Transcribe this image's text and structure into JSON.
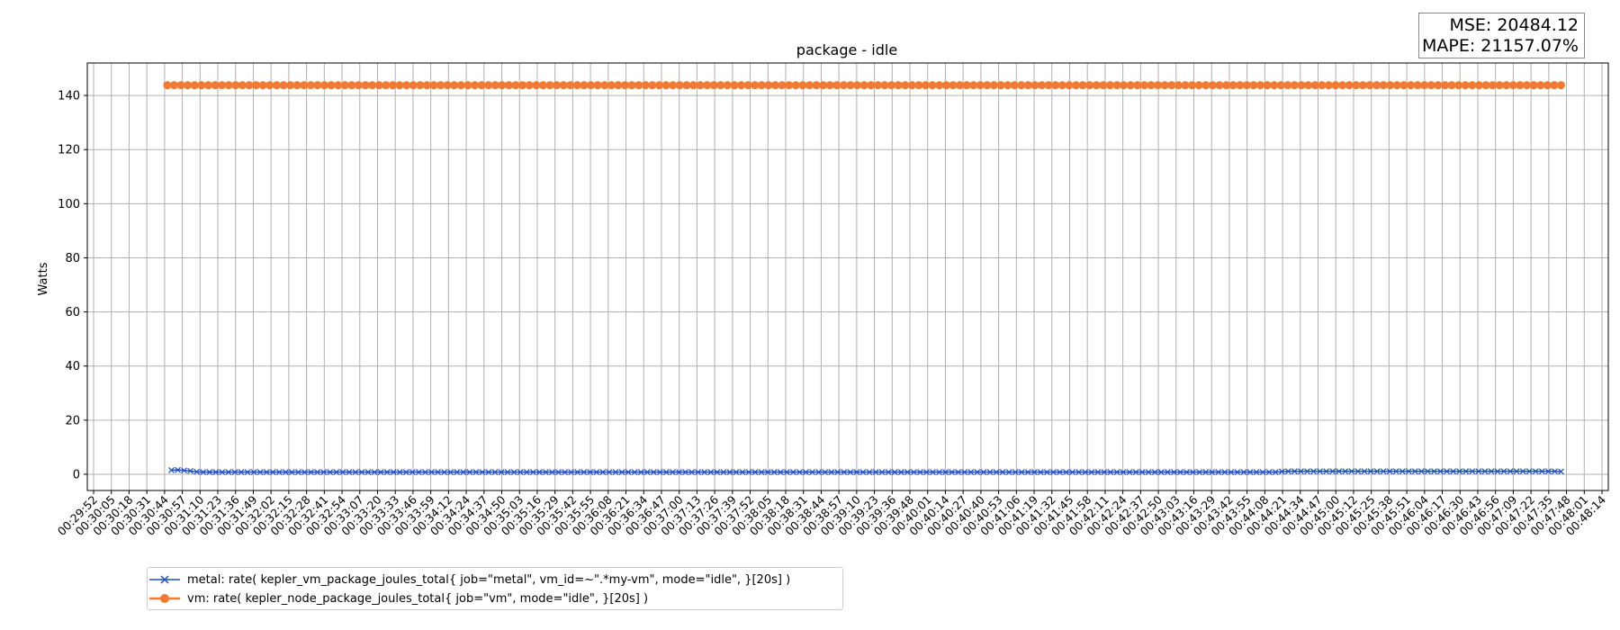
{
  "chart_data": {
    "type": "line",
    "title": "package - idle",
    "xlabel": "",
    "ylabel": "Watts",
    "ylim": [
      -6,
      152
    ],
    "yticks": [
      0,
      20,
      40,
      60,
      80,
      100,
      120,
      140
    ],
    "grid": true,
    "legend_position": "bottom-left, below plot",
    "x_tick_labels": [
      "00:29:52",
      "00:30:05",
      "00:30:18",
      "00:30:31",
      "00:30:44",
      "00:30:57",
      "00:31:10",
      "00:31:23",
      "00:31:36",
      "00:31:49",
      "00:32:02",
      "00:32:15",
      "00:32:28",
      "00:32:41",
      "00:32:54",
      "00:33:07",
      "00:33:20",
      "00:33:33",
      "00:33:46",
      "00:33:59",
      "00:34:12",
      "00:34:24",
      "00:34:37",
      "00:34:50",
      "00:35:03",
      "00:35:16",
      "00:35:29",
      "00:35:42",
      "00:35:55",
      "00:36:08",
      "00:36:21",
      "00:36:34",
      "00:36:47",
      "00:37:00",
      "00:37:13",
      "00:37:26",
      "00:37:39",
      "00:37:52",
      "00:38:05",
      "00:38:18",
      "00:38:31",
      "00:38:44",
      "00:38:57",
      "00:39:10",
      "00:39:23",
      "00:39:36",
      "00:39:48",
      "00:40:01",
      "00:40:14",
      "00:40:27",
      "00:40:40",
      "00:40:53",
      "00:41:06",
      "00:41:19",
      "00:41:32",
      "00:41:45",
      "00:41:58",
      "00:42:11",
      "00:42:24",
      "00:42:37",
      "00:42:50",
      "00:43:03",
      "00:43:16",
      "00:43:29",
      "00:43:42",
      "00:43:55",
      "00:44:08",
      "00:44:21",
      "00:44:34",
      "00:44:47",
      "00:45:00",
      "00:45:12",
      "00:45:25",
      "00:45:38",
      "00:45:51",
      "00:46:04",
      "00:46:17",
      "00:46:30",
      "00:46:43",
      "00:46:56",
      "00:47:09",
      "00:47:22",
      "00:47:35",
      "00:47:48",
      "00:48:01",
      "00:48:14"
    ],
    "series": [
      {
        "name": "metal: rate( kepler_vm_package_joules_total{ job=\"metal\", vm_id=~\".*my-vm\", mode=\"idle\", }[20s] )",
        "color": "#1f4fbf",
        "marker": "x",
        "x_range": [
          "00:30:49",
          "00:47:44"
        ],
        "values": [
          1.5,
          1.6,
          1.4,
          1.2,
          0.9,
          0.8,
          0.8,
          0.8,
          0.8,
          0.8,
          0.8,
          0.8,
          0.8,
          0.8,
          0.8,
          0.8,
          0.8,
          0.8,
          0.8,
          0.8,
          0.8,
          0.8,
          0.8,
          0.8,
          0.8,
          0.8,
          0.8,
          0.8,
          0.8,
          0.8,
          0.8,
          0.8,
          0.8,
          0.8,
          0.8,
          0.8,
          0.8,
          0.8,
          0.8,
          0.8,
          0.8,
          0.8,
          0.8,
          0.8,
          0.8,
          0.8,
          0.8,
          0.8,
          0.8,
          0.8,
          0.8,
          0.8,
          0.8,
          0.8,
          0.8,
          0.8,
          0.8,
          0.8,
          0.8,
          0.8,
          0.8,
          0.8,
          0.8,
          0.8,
          0.8,
          0.8,
          0.8,
          0.8,
          0.8,
          0.8,
          0.8,
          0.8,
          0.8,
          0.8,
          0.8,
          0.8,
          0.8,
          0.8,
          0.8,
          0.8,
          0.8,
          0.8,
          0.8,
          0.8,
          0.8,
          0.8,
          0.8,
          0.8,
          0.8,
          0.8,
          0.8,
          0.8,
          0.8,
          0.8,
          0.8,
          0.8,
          0.8,
          0.8,
          0.8,
          0.8,
          0.8,
          0.8,
          0.8,
          0.8,
          0.8,
          0.8,
          0.8,
          0.8,
          0.8,
          0.8,
          0.8,
          0.8,
          0.8,
          0.8,
          0.8,
          0.8,
          0.8,
          0.8,
          0.8,
          0.8,
          0.8,
          0.8,
          0.8,
          0.8,
          0.8,
          0.8,
          0.8,
          0.8,
          0.8,
          0.8,
          0.8,
          0.8,
          0.8,
          0.8,
          0.8,
          0.8,
          0.8,
          0.8,
          0.8,
          0.8,
          0.8,
          0.8,
          0.8,
          0.8,
          0.8,
          0.8,
          0.8,
          0.8,
          0.8,
          0.8,
          0.8,
          0.8,
          0.8,
          0.8,
          0.8,
          0.8,
          0.8,
          0.8,
          0.8,
          0.8,
          0.8,
          0.8,
          0.8,
          0.8,
          0.8,
          0.8,
          0.8,
          0.8,
          0.8,
          0.8,
          0.8,
          0.8,
          0.8,
          0.8,
          0.8,
          1.0,
          1.1,
          1.1,
          1.1,
          1.1,
          1.1,
          1.1,
          1.1,
          1.1,
          1.1,
          1.1,
          1.1,
          1.1,
          1.1,
          1.1,
          1.1,
          1.1,
          1.1,
          1.1,
          1.1,
          1.1,
          1.1,
          1.1,
          1.1,
          1.1,
          1.1,
          1.1,
          1.1,
          1.1,
          1.1,
          1.1,
          1.1,
          1.1,
          1.1,
          1.1,
          1.1,
          1.1,
          1.1,
          1.1,
          1.1,
          1.1,
          1.1,
          1.1,
          1.1,
          1.0
        ]
      },
      {
        "name": "vm: rate( kepler_node_package_joules_total{ job=\"vm\", mode=\"idle\", }[20s] )",
        "color": "#f47a33",
        "marker": "o",
        "x_range": [
          "00:30:46",
          "00:47:44"
        ],
        "constant_value": 143.8,
        "point_count": 205
      }
    ],
    "annotations": {
      "mse": "MSE: 20484.12",
      "mape": "MAPE: 21157.07%"
    }
  }
}
